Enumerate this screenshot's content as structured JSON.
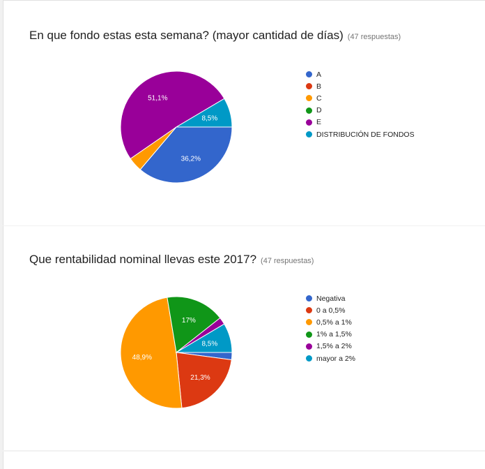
{
  "questions": [
    {
      "title": "En que fondo estas esta semana? (mayor cantidad de días)",
      "responses": "(47 respuestas)"
    },
    {
      "title": "Que rentabilidad nominal llevas este 2017?",
      "responses": "(47 respuestas)"
    }
  ],
  "chart_data": [
    {
      "type": "pie",
      "categories": [
        "A",
        "B",
        "C",
        "D",
        "E",
        "DISTRIBUCIÓN DE FONDOS"
      ],
      "values": [
        36.2,
        0,
        4.2,
        0,
        51.1,
        8.5
      ],
      "labels": [
        "36,2%",
        "",
        "",
        "",
        "51,1%",
        "8,5%"
      ],
      "colors": [
        "#3366cc",
        "#dc3912",
        "#ff9900",
        "#109618",
        "#990099",
        "#0099c6"
      ],
      "legend_position": "right"
    },
    {
      "type": "pie",
      "categories": [
        "Negativa",
        "0 a 0,5%",
        "0,5% a 1%",
        "1% a 1,5%",
        "1,5% a 2%",
        "mayor a 2%"
      ],
      "values": [
        2.1,
        21.3,
        48.9,
        17,
        2.1,
        8.5
      ],
      "labels": [
        "",
        "21,3%",
        "48,9%",
        "17%",
        "",
        "8,5%"
      ],
      "colors": [
        "#3366cc",
        "#dc3912",
        "#ff9900",
        "#109618",
        "#990099",
        "#0099c6"
      ],
      "legend_position": "right"
    }
  ]
}
